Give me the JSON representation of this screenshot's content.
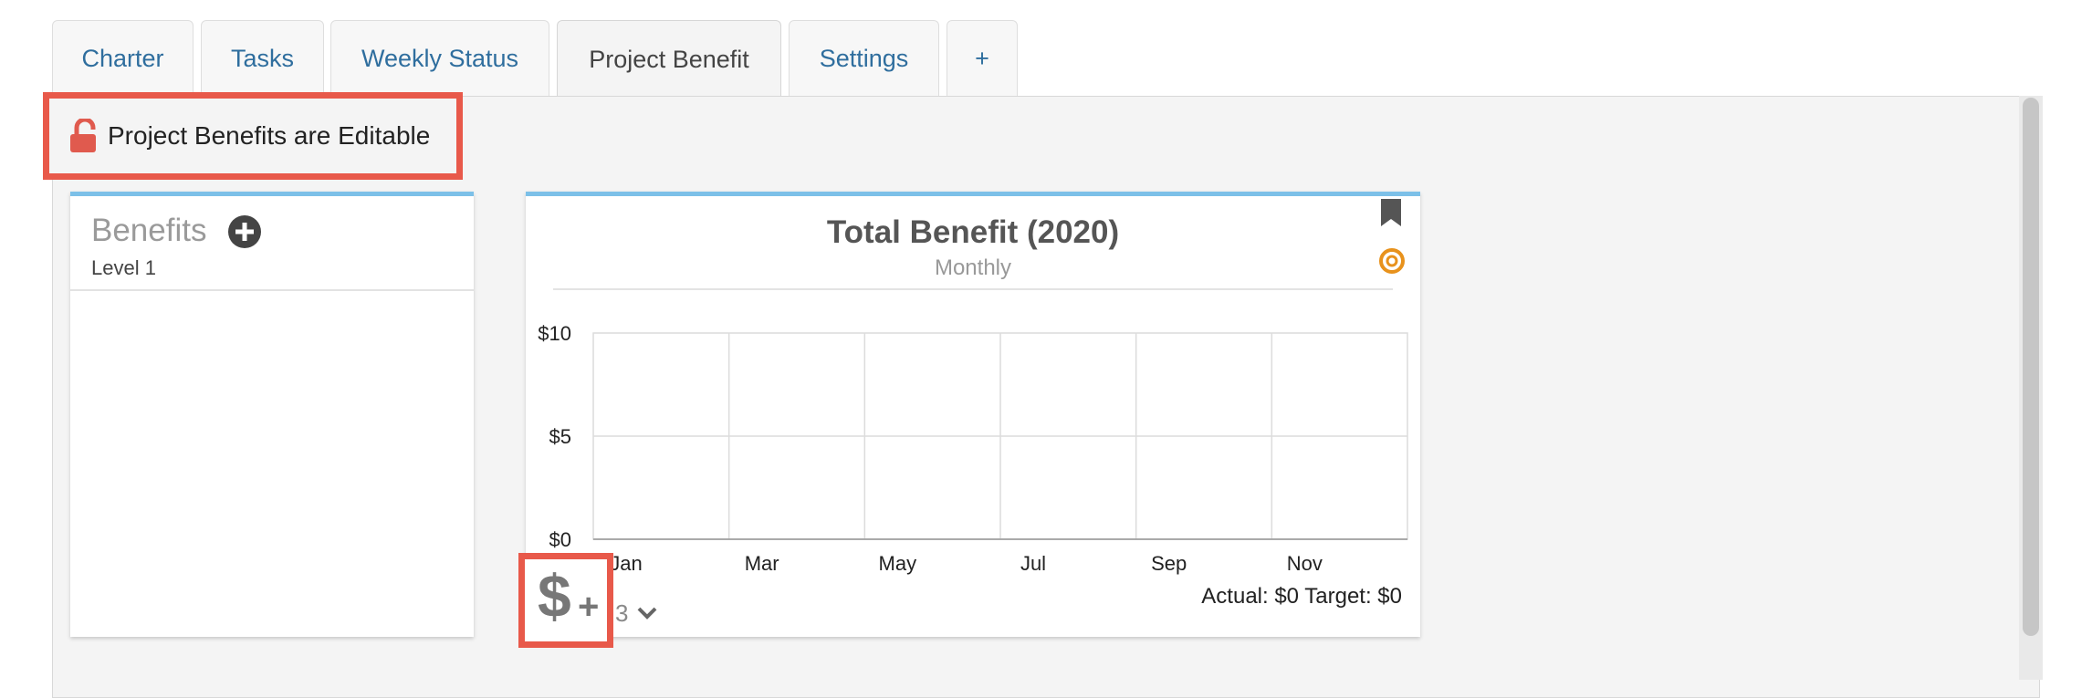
{
  "tabs": [
    {
      "label": "Charter"
    },
    {
      "label": "Tasks"
    },
    {
      "label": "Weekly Status"
    },
    {
      "label": "Project Benefit"
    },
    {
      "label": "Settings"
    },
    {
      "label": "+"
    }
  ],
  "active_tab": "Project Benefit",
  "editable_notice": "Project Benefits are Editable",
  "benefits": {
    "title": "Benefits",
    "level": "Level 1"
  },
  "chart_data": {
    "type": "line",
    "title": "Total Benefit (2020)",
    "subtitle": "Monthly",
    "categories": [
      "Jan",
      "Mar",
      "May",
      "Jul",
      "Sep",
      "Nov"
    ],
    "ytick_labels": [
      "$10",
      "$5",
      "$0"
    ],
    "ylim": [
      0,
      10
    ],
    "grid": true,
    "series": []
  },
  "summary": "Actual: $0 Target: $0",
  "dollar_button": {
    "symbol": "$",
    "plus": "+"
  },
  "benefit_count": "3",
  "colors": {
    "accent": "#7cc0e8",
    "highlight": "#e8594a",
    "link": "#2f6e9e",
    "target": "#e8921c",
    "lock": "#e05a4e"
  },
  "icons": [
    "lock-open-icon",
    "add-circle-icon",
    "bookmark-icon",
    "target-icon",
    "chevron-down-icon",
    "dollar-plus-icon"
  ]
}
